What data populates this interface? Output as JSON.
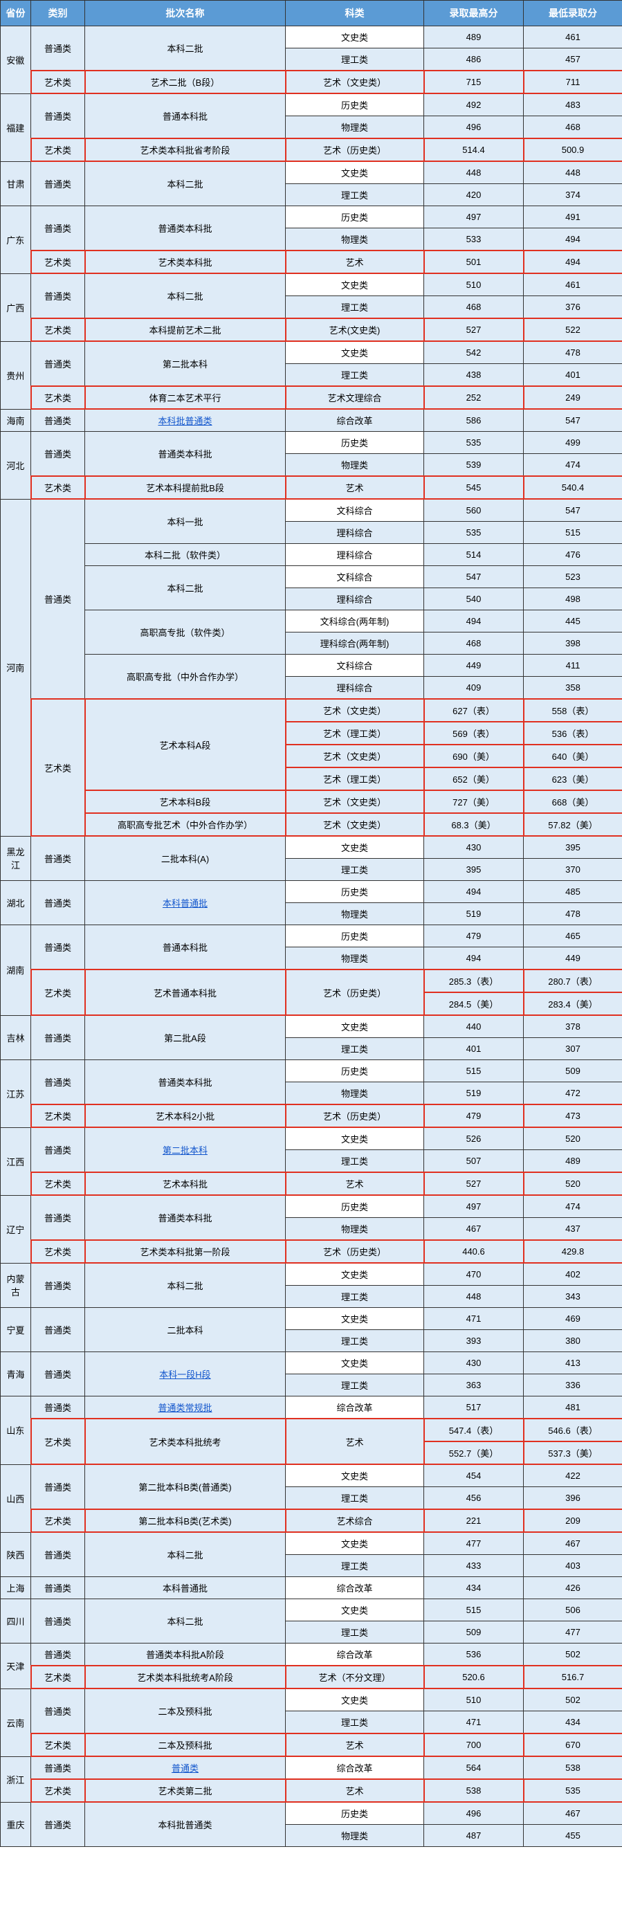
{
  "headers": [
    "省份",
    "类别",
    "批次名称",
    "科类",
    "录取最高分",
    "最低录取分"
  ],
  "rows": [
    {
      "prov": "安徽",
      "provSpan": 3,
      "cat": "普通类",
      "catSpan": 2,
      "batch": "本科二批",
      "batchSpan": 2,
      "type": "文史类",
      "typeW": true,
      "max": "489",
      "min": "461"
    },
    {
      "type": "理工类",
      "max": "486",
      "min": "457"
    },
    {
      "cat": "艺术类",
      "catSpan": 1,
      "catHL": true,
      "batch": "艺术二批（B段）",
      "batchSpan": 1,
      "batchHL": true,
      "type": "艺术（文史类）",
      "typeHL": true,
      "max": "715",
      "maxHL": true,
      "min": "711",
      "minHL": true
    },
    {
      "prov": "福建",
      "provSpan": 3,
      "cat": "普通类",
      "catSpan": 2,
      "batch": "普通本科批",
      "batchSpan": 2,
      "type": "历史类",
      "typeW": true,
      "max": "492",
      "min": "483"
    },
    {
      "type": "物理类",
      "max": "496",
      "min": "468"
    },
    {
      "cat": "艺术类",
      "catSpan": 1,
      "catHL": true,
      "batch": "艺术类本科批省考阶段",
      "batchSpan": 1,
      "batchHL": true,
      "type": "艺术（历史类）",
      "typeHL": true,
      "max": "514.4",
      "maxHL": true,
      "min": "500.9",
      "minHL": true
    },
    {
      "prov": "甘肃",
      "provSpan": 2,
      "cat": "普通类",
      "catSpan": 2,
      "batch": "本科二批",
      "batchSpan": 2,
      "type": "文史类",
      "typeW": true,
      "max": "448",
      "min": "448"
    },
    {
      "type": "理工类",
      "max": "420",
      "min": "374"
    },
    {
      "prov": "广东",
      "provSpan": 3,
      "cat": "普通类",
      "catSpan": 2,
      "batch": "普通类本科批",
      "batchSpan": 2,
      "type": "历史类",
      "typeW": true,
      "max": "497",
      "min": "491"
    },
    {
      "type": "物理类",
      "max": "533",
      "min": "494"
    },
    {
      "cat": "艺术类",
      "catSpan": 1,
      "catHL": true,
      "batch": "艺术类本科批",
      "batchSpan": 1,
      "batchHL": true,
      "type": "艺术",
      "typeHL": true,
      "max": "501",
      "maxHL": true,
      "min": "494",
      "minHL": true
    },
    {
      "prov": "广西",
      "provSpan": 3,
      "cat": "普通类",
      "catSpan": 2,
      "batch": "本科二批",
      "batchSpan": 2,
      "type": "文史类",
      "typeW": true,
      "max": "510",
      "min": "461"
    },
    {
      "type": "理工类",
      "max": "468",
      "min": "376"
    },
    {
      "cat": "艺术类",
      "catSpan": 1,
      "catHL": true,
      "batch": "本科提前艺术二批",
      "batchSpan": 1,
      "batchHL": true,
      "type": "艺术(文史类)",
      "typeHL": true,
      "max": "527",
      "maxHL": true,
      "min": "522",
      "minHL": true
    },
    {
      "prov": "贵州",
      "provSpan": 3,
      "cat": "普通类",
      "catSpan": 2,
      "batch": "第二批本科",
      "batchSpan": 2,
      "type": "文史类",
      "typeW": true,
      "max": "542",
      "min": "478"
    },
    {
      "type": "理工类",
      "max": "438",
      "min": "401"
    },
    {
      "cat": "艺术类",
      "catSpan": 1,
      "catHL": true,
      "batch": "体育二本艺术平行",
      "batchSpan": 1,
      "batchHL": true,
      "type": "艺术文理综合",
      "typeHL": true,
      "max": "252",
      "maxHL": true,
      "min": "249",
      "minHL": true
    },
    {
      "prov": "海南",
      "provSpan": 1,
      "cat": "普通类",
      "catSpan": 1,
      "batch": "本科批普通类",
      "batchSpan": 1,
      "batchLink": true,
      "type": "综合改革",
      "max": "586",
      "min": "547"
    },
    {
      "prov": "河北",
      "provSpan": 3,
      "cat": "普通类",
      "catSpan": 2,
      "batch": "普通类本科批",
      "batchSpan": 2,
      "type": "历史类",
      "typeW": true,
      "max": "535",
      "min": "499"
    },
    {
      "type": "物理类",
      "max": "539",
      "min": "474"
    },
    {
      "cat": "艺术类",
      "catSpan": 1,
      "catHL": true,
      "batch": "艺术本科提前批B段",
      "batchSpan": 1,
      "batchHL": true,
      "type": "艺术",
      "typeHL": true,
      "max": "545",
      "maxHL": true,
      "min": "540.4",
      "minHL": true
    },
    {
      "prov": "河南",
      "provSpan": 15,
      "cat": "普通类",
      "catSpan": 9,
      "batch": "本科一批",
      "batchSpan": 2,
      "type": "文科综合",
      "typeW": true,
      "max": "560",
      "min": "547"
    },
    {
      "type": "理科综合",
      "max": "535",
      "min": "515"
    },
    {
      "batch": "本科二批（软件类）",
      "batchSpan": 1,
      "type": "理科综合",
      "typeW": true,
      "max": "514",
      "min": "476"
    },
    {
      "batch": "本科二批",
      "batchSpan": 2,
      "type": "文科综合",
      "typeW": true,
      "max": "547",
      "min": "523"
    },
    {
      "type": "理科综合",
      "max": "540",
      "min": "498"
    },
    {
      "batch": "高职高专批（软件类）",
      "batchSpan": 2,
      "type": "文科综合(两年制)",
      "typeW": true,
      "max": "494",
      "min": "445"
    },
    {
      "type": "理科综合(两年制)",
      "max": "468",
      "min": "398"
    },
    {
      "batch": "高职高专批（中外合作办学）",
      "batchSpan": 2,
      "type": "文科综合",
      "typeW": true,
      "max": "449",
      "min": "411"
    },
    {
      "type": "理科综合",
      "max": "409",
      "min": "358"
    },
    {
      "cat": "艺术类",
      "catSpan": 6,
      "catHL": true,
      "batch": "艺术本科A段",
      "batchSpan": 4,
      "batchHL": true,
      "type": "艺术（文史类）",
      "typeHL": true,
      "max": "627（表）",
      "maxHL": true,
      "min": "558（表）",
      "minHL": true
    },
    {
      "type": "艺术（理工类）",
      "typeHL": true,
      "max": "569（表）",
      "maxHL": true,
      "min": "536（表）",
      "minHL": true
    },
    {
      "type": "艺术（文史类）",
      "typeHL": true,
      "max": "690（美）",
      "maxHL": true,
      "min": "640（美）",
      "minHL": true
    },
    {
      "type": "艺术（理工类）",
      "typeHL": true,
      "max": "652（美）",
      "maxHL": true,
      "min": "623（美）",
      "minHL": true
    },
    {
      "batch": "艺术本科B段",
      "batchSpan": 1,
      "batchHL": true,
      "type": "艺术（文史类）",
      "typeHL": true,
      "max": "727（美）",
      "maxHL": true,
      "min": "668（美）",
      "minHL": true
    },
    {
      "batch": "高职高专批艺术（中外合作办学）",
      "batchSpan": 1,
      "batchHL": true,
      "type": "艺术（文史类）",
      "typeHL": true,
      "max": "68.3（美）",
      "maxHL": true,
      "min": "57.82（美）",
      "minHL": true
    },
    {
      "prov": "黑龙江",
      "provSpan": 2,
      "cat": "普通类",
      "catSpan": 2,
      "batch": "二批本科(A)",
      "batchSpan": 2,
      "type": "文史类",
      "typeW": true,
      "max": "430",
      "min": "395"
    },
    {
      "type": "理工类",
      "max": "395",
      "min": "370"
    },
    {
      "prov": "湖北",
      "provSpan": 2,
      "cat": "普通类",
      "catSpan": 2,
      "batch": "本科普通批",
      "batchSpan": 2,
      "batchLink": true,
      "type": "历史类",
      "typeW": true,
      "max": "494",
      "min": "485"
    },
    {
      "type": "物理类",
      "max": "519",
      "min": "478"
    },
    {
      "prov": "湖南",
      "provSpan": 4,
      "cat": "普通类",
      "catSpan": 2,
      "batch": "普通本科批",
      "batchSpan": 2,
      "type": "历史类",
      "typeW": true,
      "max": "479",
      "min": "465"
    },
    {
      "type": "物理类",
      "max": "494",
      "min": "449"
    },
    {
      "cat": "艺术类",
      "catSpan": 2,
      "catHL": true,
      "batch": "艺术普通本科批",
      "batchSpan": 2,
      "batchHL": true,
      "type": "艺术（历史类）",
      "typeSpan": 2,
      "typeHL": true,
      "max": "285.3（表）",
      "maxHL": true,
      "min": "280.7（表）",
      "minHL": true
    },
    {
      "max": "284.5（美）",
      "maxHL": true,
      "min": "283.4（美）",
      "minHL": true
    },
    {
      "prov": "吉林",
      "provSpan": 2,
      "cat": "普通类",
      "catSpan": 2,
      "batch": "第二批A段",
      "batchSpan": 2,
      "type": "文史类",
      "typeW": true,
      "max": "440",
      "min": "378"
    },
    {
      "type": "理工类",
      "max": "401",
      "min": "307"
    },
    {
      "prov": "江苏",
      "provSpan": 3,
      "cat": "普通类",
      "catSpan": 2,
      "batch": "普通类本科批",
      "batchSpan": 2,
      "type": "历史类",
      "typeW": true,
      "max": "515",
      "min": "509"
    },
    {
      "type": "物理类",
      "max": "519",
      "min": "472"
    },
    {
      "cat": "艺术类",
      "catSpan": 1,
      "catHL": true,
      "batch": "艺术本科2小批",
      "batchSpan": 1,
      "batchHL": true,
      "type": "艺术（历史类）",
      "typeHL": true,
      "max": "479",
      "maxHL": true,
      "min": "473",
      "minHL": true
    },
    {
      "prov": "江西",
      "provSpan": 3,
      "cat": "普通类",
      "catSpan": 2,
      "batch": "第二批本科",
      "batchSpan": 2,
      "batchLink": true,
      "type": "文史类",
      "typeW": true,
      "max": "526",
      "min": "520"
    },
    {
      "type": "理工类",
      "max": "507",
      "min": "489"
    },
    {
      "cat": "艺术类",
      "catSpan": 1,
      "catHL": true,
      "batch": "艺术本科批",
      "batchSpan": 1,
      "batchHL": true,
      "type": "艺术",
      "typeHL": true,
      "max": "527",
      "maxHL": true,
      "min": "520",
      "minHL": true
    },
    {
      "prov": "辽宁",
      "provSpan": 3,
      "cat": "普通类",
      "catSpan": 2,
      "batch": "普通类本科批",
      "batchSpan": 2,
      "type": "历史类",
      "typeW": true,
      "max": "497",
      "min": "474"
    },
    {
      "type": "物理类",
      "max": "467",
      "min": "437"
    },
    {
      "cat": "艺术类",
      "catSpan": 1,
      "catHL": true,
      "batch": "艺术类本科批第一阶段",
      "batchSpan": 1,
      "batchHL": true,
      "type": "艺术（历史类）",
      "typeHL": true,
      "max": "440.6",
      "maxHL": true,
      "min": "429.8",
      "minHL": true
    },
    {
      "prov": "内蒙古",
      "provSpan": 2,
      "cat": "普通类",
      "catSpan": 2,
      "batch": "本科二批",
      "batchSpan": 2,
      "type": "文史类",
      "typeW": true,
      "max": "470",
      "min": "402"
    },
    {
      "type": "理工类",
      "max": "448",
      "min": "343"
    },
    {
      "prov": "宁夏",
      "provSpan": 2,
      "cat": "普通类",
      "catSpan": 2,
      "batch": "二批本科",
      "batchSpan": 2,
      "type": "文史类",
      "typeW": true,
      "max": "471",
      "min": "469"
    },
    {
      "type": "理工类",
      "max": "393",
      "min": "380"
    },
    {
      "prov": "青海",
      "provSpan": 2,
      "cat": "普通类",
      "catSpan": 2,
      "batch": "本科一段H段",
      "batchSpan": 2,
      "batchLink": true,
      "type": "文史类",
      "typeW": true,
      "max": "430",
      "min": "413"
    },
    {
      "type": "理工类",
      "max": "363",
      "min": "336"
    },
    {
      "prov": "山东",
      "provSpan": 3,
      "cat": "普通类",
      "catSpan": 1,
      "batch": "普通类常规批",
      "batchSpan": 1,
      "batchLink": true,
      "type": "综合改革",
      "typeW": true,
      "max": "517",
      "min": "481"
    },
    {
      "cat": "艺术类",
      "catSpan": 2,
      "catHL": true,
      "batch": "艺术类本科批统考",
      "batchSpan": 2,
      "batchHL": true,
      "type": "艺术",
      "typeSpan": 2,
      "typeHL": true,
      "max": "547.4（表）",
      "maxHL": true,
      "min": "546.6（表）",
      "minHL": true
    },
    {
      "max": "552.7（美）",
      "maxHL": true,
      "min": "537.3（美）",
      "minHL": true
    },
    {
      "prov": "山西",
      "provSpan": 3,
      "cat": "普通类",
      "catSpan": 2,
      "batch": "第二批本科B类(普通类)",
      "batchSpan": 2,
      "type": "文史类",
      "typeW": true,
      "max": "454",
      "min": "422"
    },
    {
      "type": "理工类",
      "max": "456",
      "min": "396"
    },
    {
      "cat": "艺术类",
      "catSpan": 1,
      "catHL": true,
      "batch": "第二批本科B类(艺术类)",
      "batchSpan": 1,
      "batchHL": true,
      "type": "艺术综合",
      "typeHL": true,
      "max": "221",
      "maxHL": true,
      "min": "209",
      "minHL": true
    },
    {
      "prov": "陕西",
      "provSpan": 2,
      "cat": "普通类",
      "catSpan": 2,
      "batch": "本科二批",
      "batchSpan": 2,
      "type": "文史类",
      "typeW": true,
      "max": "477",
      "min": "467"
    },
    {
      "type": "理工类",
      "max": "433",
      "min": "403"
    },
    {
      "prov": "上海",
      "provSpan": 1,
      "cat": "普通类",
      "catSpan": 1,
      "batch": "本科普通批",
      "batchSpan": 1,
      "type": "综合改革",
      "typeW": true,
      "max": "434",
      "min": "426"
    },
    {
      "prov": "四川",
      "provSpan": 2,
      "cat": "普通类",
      "catSpan": 2,
      "batch": "本科二批",
      "batchSpan": 2,
      "type": "文史类",
      "typeW": true,
      "max": "515",
      "min": "506"
    },
    {
      "type": "理工类",
      "max": "509",
      "min": "477"
    },
    {
      "prov": "天津",
      "provSpan": 2,
      "cat": "普通类",
      "catSpan": 1,
      "batch": "普通类本科批A阶段",
      "batchSpan": 1,
      "type": "综合改革",
      "typeW": true,
      "max": "536",
      "min": "502"
    },
    {
      "cat": "艺术类",
      "catSpan": 1,
      "catHL": true,
      "batch": "艺术类本科批统考A阶段",
      "batchSpan": 1,
      "batchHL": true,
      "type": "艺术（不分文理）",
      "typeHL": true,
      "max": "520.6",
      "maxHL": true,
      "min": "516.7",
      "minHL": true
    },
    {
      "prov": "云南",
      "provSpan": 3,
      "cat": "普通类",
      "catSpan": 2,
      "batch": "二本及预科批",
      "batchSpan": 2,
      "type": "文史类",
      "typeW": true,
      "max": "510",
      "min": "502"
    },
    {
      "type": "理工类",
      "max": "471",
      "min": "434"
    },
    {
      "cat": "艺术类",
      "catSpan": 1,
      "catHL": true,
      "batch": "二本及预科批",
      "batchSpan": 1,
      "batchHL": true,
      "type": "艺术",
      "typeHL": true,
      "max": "700",
      "maxHL": true,
      "min": "670",
      "minHL": true
    },
    {
      "prov": "浙江",
      "provSpan": 2,
      "cat": "普通类",
      "catSpan": 1,
      "batch": "普通类",
      "batchSpan": 1,
      "batchLink": true,
      "type": "综合改革",
      "typeW": true,
      "max": "564",
      "min": "538"
    },
    {
      "cat": "艺术类",
      "catSpan": 1,
      "catHL": true,
      "batch": "艺术类第二批",
      "batchSpan": 1,
      "batchHL": true,
      "type": "艺术",
      "typeHL": true,
      "max": "538",
      "maxHL": true,
      "min": "535",
      "minHL": true
    },
    {
      "prov": "重庆",
      "provSpan": 2,
      "cat": "普通类",
      "catSpan": 2,
      "batch": "本科批普通类",
      "batchSpan": 2,
      "type": "历史类",
      "typeW": true,
      "max": "496",
      "min": "467"
    },
    {
      "type": "物理类",
      "max": "487",
      "min": "455"
    }
  ]
}
